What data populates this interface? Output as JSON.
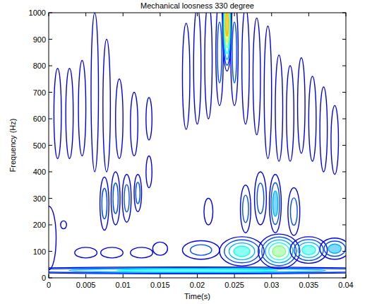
{
  "chart_data": {
    "type": "contour",
    "title": "Mechanical loosness 330 degree",
    "x_label": "Time(s)",
    "y_label": "Frequency (Hz)",
    "xlim": [
      0,
      0.04
    ],
    "ylim": [
      0,
      1000
    ],
    "xticks": [
      0,
      0.005,
      0.01,
      0.015,
      0.02,
      0.025,
      0.03,
      0.035,
      0.04
    ],
    "yticks": [
      0,
      100,
      200,
      300,
      400,
      500,
      600,
      700,
      800,
      900,
      1000
    ],
    "regions": [
      {
        "t": 0.02,
        "f": 28,
        "dt": 0.03,
        "df": 13,
        "level": 0.35
      },
      {
        "t": 0.0,
        "f": 150,
        "dt": 0.001,
        "df": 120,
        "level": 0.12
      },
      {
        "t": 0.002,
        "f": 200,
        "dt": 0.0004,
        "df": 15,
        "level": 0.1
      },
      {
        "t": 0.005,
        "f": 95,
        "dt": 0.0015,
        "df": 20,
        "level": 0.1
      },
      {
        "t": 0.0085,
        "f": 95,
        "dt": 0.0015,
        "df": 20,
        "level": 0.1
      },
      {
        "t": 0.0125,
        "f": 95,
        "dt": 0.0015,
        "df": 20,
        "level": 0.1
      },
      {
        "t": 0.015,
        "f": 110,
        "dt": 0.001,
        "df": 25,
        "level": 0.12
      },
      {
        "t": 0.0012,
        "f": 620,
        "dt": 0.0005,
        "df": 170,
        "level": 0.12
      },
      {
        "t": 0.0028,
        "f": 620,
        "dt": 0.0005,
        "df": 170,
        "level": 0.12
      },
      {
        "t": 0.0045,
        "f": 640,
        "dt": 0.0005,
        "df": 180,
        "level": 0.12
      },
      {
        "t": 0.0062,
        "f": 700,
        "dt": 0.0005,
        "df": 300,
        "level": 0.12
      },
      {
        "t": 0.0078,
        "f": 650,
        "dt": 0.0005,
        "df": 250,
        "level": 0.12
      },
      {
        "t": 0.0095,
        "f": 600,
        "dt": 0.0005,
        "df": 150,
        "level": 0.12
      },
      {
        "t": 0.0115,
        "f": 580,
        "dt": 0.0005,
        "df": 120,
        "level": 0.12
      },
      {
        "t": 0.0135,
        "f": 600,
        "dt": 0.0004,
        "df": 80,
        "level": 0.1
      },
      {
        "t": 0.0075,
        "f": 280,
        "dt": 0.0006,
        "df": 100,
        "level": 0.2
      },
      {
        "t": 0.009,
        "f": 300,
        "dt": 0.0006,
        "df": 100,
        "level": 0.2
      },
      {
        "t": 0.0105,
        "f": 300,
        "dt": 0.0006,
        "df": 90,
        "level": 0.2
      },
      {
        "t": 0.012,
        "f": 320,
        "dt": 0.0005,
        "df": 70,
        "level": 0.15
      },
      {
        "t": 0.0135,
        "f": 400,
        "dt": 0.0004,
        "df": 60,
        "level": 0.1
      },
      {
        "t": 0.0205,
        "f": 105,
        "dt": 0.0025,
        "df": 35,
        "level": 0.2
      },
      {
        "t": 0.026,
        "f": 100,
        "dt": 0.003,
        "df": 55,
        "level": 0.4
      },
      {
        "t": 0.031,
        "f": 100,
        "dt": 0.0028,
        "df": 65,
        "level": 0.45
      },
      {
        "t": 0.035,
        "f": 105,
        "dt": 0.0025,
        "df": 50,
        "level": 0.4
      },
      {
        "t": 0.0385,
        "f": 110,
        "dt": 0.002,
        "df": 40,
        "level": 0.3
      },
      {
        "t": 0.0215,
        "f": 250,
        "dt": 0.0006,
        "df": 50,
        "level": 0.1
      },
      {
        "t": 0.0265,
        "f": 260,
        "dt": 0.0007,
        "df": 90,
        "level": 0.15
      },
      {
        "t": 0.0285,
        "f": 300,
        "dt": 0.0008,
        "df": 100,
        "level": 0.2
      },
      {
        "t": 0.0305,
        "f": 280,
        "dt": 0.0008,
        "df": 110,
        "level": 0.25
      },
      {
        "t": 0.033,
        "f": 250,
        "dt": 0.0008,
        "df": 90,
        "level": 0.2
      },
      {
        "t": 0.0185,
        "f": 760,
        "dt": 0.0005,
        "df": 200,
        "level": 0.12
      },
      {
        "t": 0.02,
        "f": 800,
        "dt": 0.0005,
        "df": 220,
        "level": 0.12
      },
      {
        "t": 0.0215,
        "f": 820,
        "dt": 0.0005,
        "df": 220,
        "level": 0.12
      },
      {
        "t": 0.023,
        "f": 850,
        "dt": 0.0005,
        "df": 200,
        "level": 0.2
      },
      {
        "t": 0.025,
        "f": 850,
        "dt": 0.0005,
        "df": 200,
        "level": 0.2
      },
      {
        "t": 0.0265,
        "f": 800,
        "dt": 0.0005,
        "df": 220,
        "level": 0.12
      },
      {
        "t": 0.028,
        "f": 760,
        "dt": 0.0005,
        "df": 220,
        "level": 0.12
      },
      {
        "t": 0.0295,
        "f": 700,
        "dt": 0.0005,
        "df": 250,
        "level": 0.12
      },
      {
        "t": 0.031,
        "f": 640,
        "dt": 0.0005,
        "df": 200,
        "level": 0.12
      },
      {
        "t": 0.0325,
        "f": 620,
        "dt": 0.0005,
        "df": 180,
        "level": 0.12
      },
      {
        "t": 0.034,
        "f": 650,
        "dt": 0.0005,
        "df": 180,
        "level": 0.12
      },
      {
        "t": 0.0355,
        "f": 600,
        "dt": 0.0005,
        "df": 160,
        "level": 0.12
      },
      {
        "t": 0.037,
        "f": 560,
        "dt": 0.0005,
        "df": 160,
        "level": 0.12
      },
      {
        "t": 0.0385,
        "f": 520,
        "dt": 0.0005,
        "df": 130,
        "level": 0.12
      },
      {
        "t": 0.024,
        "f": 960,
        "dt": 0.0006,
        "df": 180,
        "level": 0.65
      }
    ]
  }
}
